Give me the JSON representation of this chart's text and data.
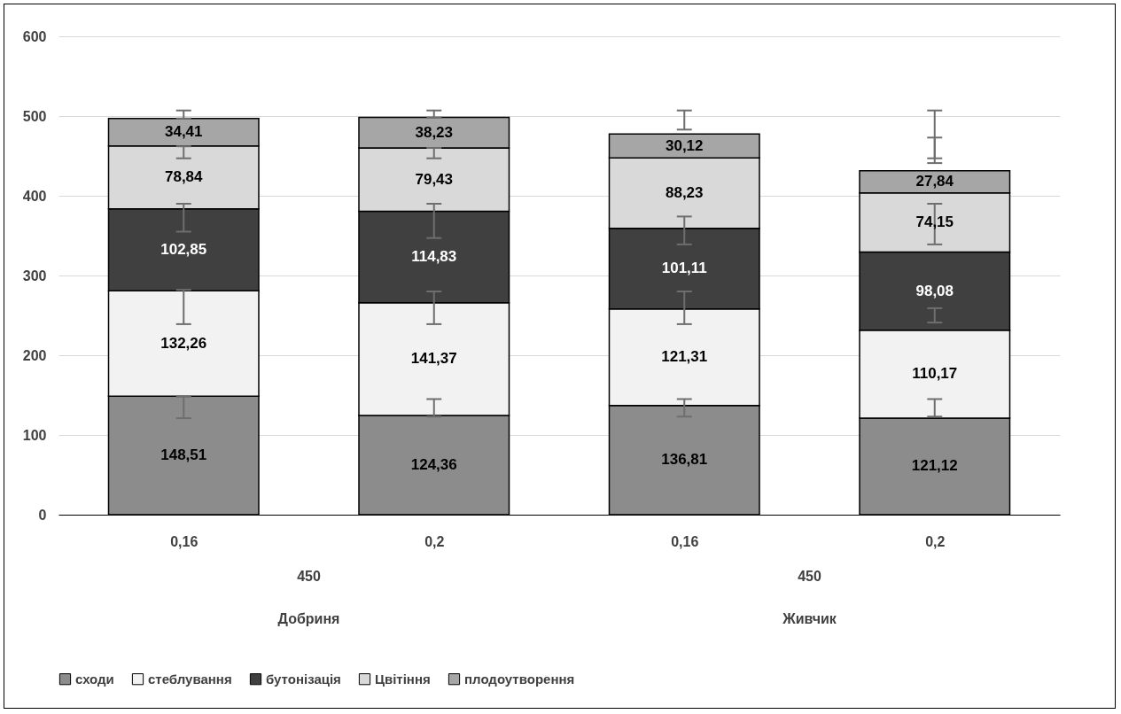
{
  "chart_data": {
    "type": "bar",
    "stacked": true,
    "categories": [
      "0,16",
      "0,2",
      "0,16",
      "0,2"
    ],
    "series": [
      {
        "name": "сходи",
        "color": "#8c8c8c",
        "values": [
          148.51,
          124.36,
          136.81,
          121.12
        ],
        "value_labels": [
          "148,51",
          "124,36",
          "136,81",
          "121,12"
        ],
        "errors": [
          [
            121,
            148
          ],
          [
            123,
            145
          ],
          [
            123,
            145
          ],
          [
            123,
            145
          ]
        ]
      },
      {
        "name": "стеблування",
        "color": "#f2f2f2",
        "values": [
          132.26,
          141.37,
          121.31,
          110.17
        ],
        "value_labels": [
          "132,26",
          "141,37",
          "121,31",
          "110,17"
        ],
        "errors": [
          [
            239,
            282
          ],
          [
            239,
            280
          ],
          [
            239,
            280
          ],
          [
            241,
            259
          ]
        ]
      },
      {
        "name": "бутонізація",
        "color": "#404040",
        "values": [
          102.85,
          114.83,
          101.11,
          98.08
        ],
        "value_labels": [
          "102,85",
          "114,83",
          "101,11",
          "98,08"
        ],
        "errors": [
          [
            355,
            390
          ],
          [
            347,
            390
          ],
          [
            339,
            374
          ],
          [
            339,
            390
          ]
        ]
      },
      {
        "name": "Цвітіння",
        "color": "#d9d9d9",
        "values": [
          78.84,
          79.43,
          88.23,
          74.15
        ],
        "value_labels": [
          "78,84",
          "79,43",
          "88,23",
          "74,15"
        ],
        "errors": [
          [
            447,
            462
          ],
          [
            447,
            460
          ],
          null,
          [
            441,
            473
          ]
        ]
      },
      {
        "name": "плодоутворення",
        "color": "#a6a6a6",
        "values": [
          34.41,
          38.23,
          30.12,
          27.84
        ],
        "value_labels": [
          "34,41",
          "38,23",
          "30,12",
          "27,84"
        ],
        "errors": [
          [
            497,
            507
          ],
          [
            498,
            507
          ],
          [
            483,
            507
          ],
          [
            447,
            507
          ]
        ]
      }
    ],
    "annotations": [
      "450",
      "Добриня",
      "450",
      "Живчик"
    ],
    "ylim": [
      0,
      600
    ],
    "yticks": [
      0,
      100,
      200,
      300,
      400,
      500,
      600
    ],
    "grid": "y",
    "legend": "bottom"
  }
}
